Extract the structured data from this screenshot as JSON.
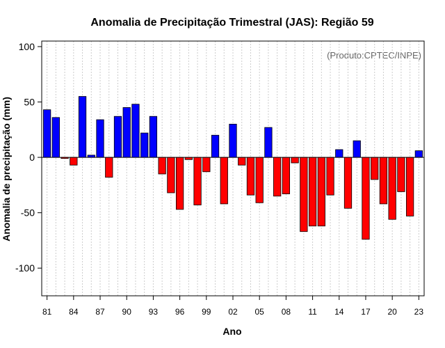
{
  "chart_data": {
    "type": "bar",
    "title": "Anomalia de Precipitação Trimestral (JAS): Região 59",
    "xlabel": "Ano",
    "ylabel": "Anomalia de precipitação (mm)",
    "credit": "(Produto:CPTEC/INPE)",
    "ylim": [
      -125,
      105
    ],
    "yticks": [
      100,
      50,
      0,
      -50,
      -100
    ],
    "x_tick_labels": [
      "81",
      "84",
      "87",
      "90",
      "93",
      "96",
      "99",
      "02",
      "05",
      "08",
      "11",
      "14",
      "17",
      "20",
      "23"
    ],
    "x_tick_years": [
      1981,
      1984,
      1987,
      1990,
      1993,
      1996,
      1999,
      2002,
      2005,
      2008,
      2011,
      2014,
      2017,
      2020,
      2023
    ],
    "years": [
      1981,
      1982,
      1983,
      1984,
      1985,
      1986,
      1987,
      1988,
      1989,
      1990,
      1991,
      1992,
      1993,
      1994,
      1995,
      1996,
      1997,
      1998,
      1999,
      2000,
      2001,
      2002,
      2003,
      2004,
      2005,
      2006,
      2007,
      2008,
      2009,
      2010,
      2011,
      2012,
      2013,
      2014,
      2015,
      2016,
      2017,
      2018,
      2019,
      2020,
      2021,
      2022,
      2023
    ],
    "values": [
      43,
      36,
      -1,
      -7,
      55,
      2,
      34,
      -18,
      37,
      45,
      48,
      22,
      37,
      -15,
      -32,
      -47,
      -2,
      -43,
      -13,
      20,
      -42,
      30,
      -7,
      -34,
      -41,
      27,
      -35,
      -33,
      -5,
      -67,
      -62,
      -62,
      -34,
      7,
      -46,
      15,
      -74,
      -20,
      -42,
      -56,
      -31,
      -53,
      6
    ],
    "colors": {
      "positive": "#0000ff",
      "negative": "#ff0000",
      "outline": "#000000",
      "grid": "#cccccc"
    },
    "grid": true
  }
}
